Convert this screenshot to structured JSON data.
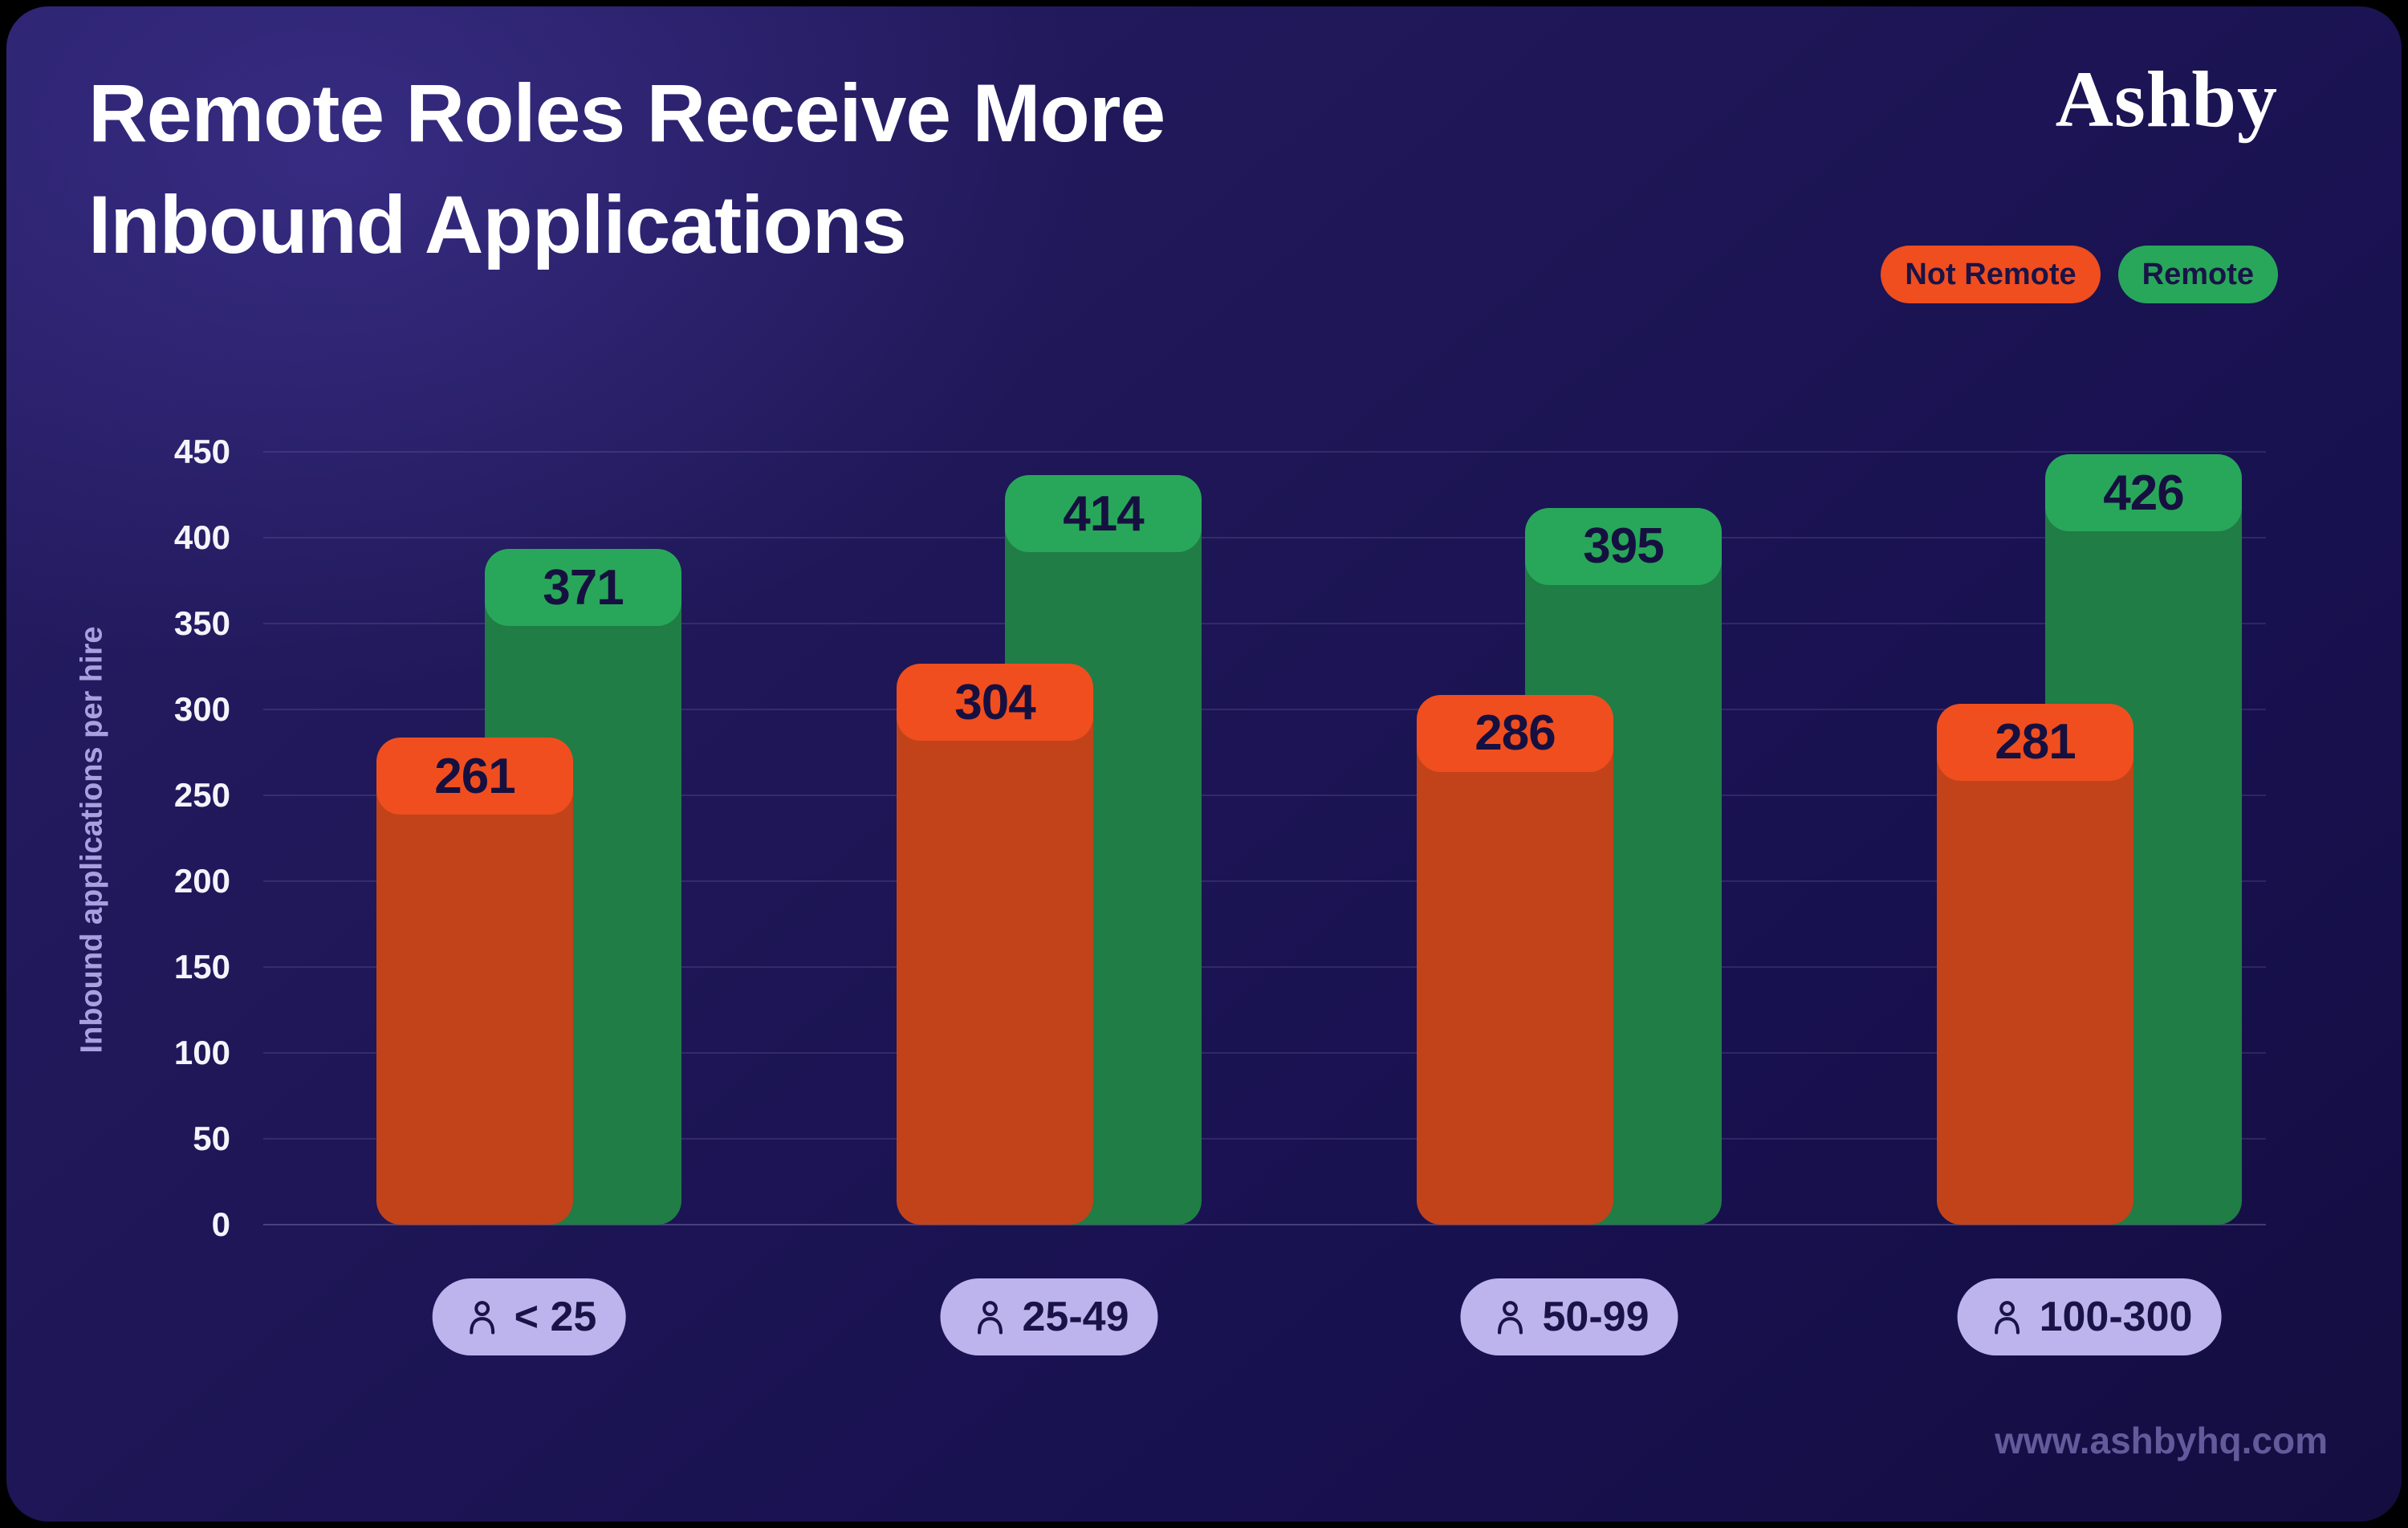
{
  "page": {
    "title_line1": "Remote Roles Receive More",
    "title_line2": "Inbound Applications",
    "logo": "Ashby",
    "footer_url": "www.ashbyhq.com"
  },
  "legend": {
    "items": [
      {
        "label": "Not Remote",
        "color": "#F04E1F"
      },
      {
        "label": "Remote",
        "color": "#28A75A"
      }
    ],
    "position": "top-right"
  },
  "colors": {
    "background_dark": "#181150",
    "background_light": "#271e67",
    "not_remote_cap": "#F04E1F",
    "not_remote_body": "#C2431A",
    "remote_cap": "#28A75A",
    "remote_body": "#1F7D45",
    "value_text": "#161040",
    "tick_text": "#F5F4FC",
    "axis_title_text": "#A9A0DF",
    "category_pill_bg": "#BDB4EE",
    "category_pill_text": "#1A1347",
    "footer_text": "#635A9B",
    "gridline": "rgba(200,195,240,0.13)"
  },
  "chart_data": {
    "type": "bar",
    "title": "Remote Roles Receive More Inbound Applications",
    "categories": [
      "< 25",
      "25-49",
      "50-99",
      "100-300"
    ],
    "series": [
      {
        "name": "Not Remote",
        "values": [
          261,
          304,
          286,
          281
        ],
        "cap_color": "#F04E1F",
        "body_color": "#C2431A"
      },
      {
        "name": "Remote",
        "values": [
          371,
          414,
          395,
          426
        ],
        "cap_color": "#28A75A",
        "body_color": "#1F7D45"
      }
    ],
    "xlabel": "",
    "ylabel": "Inbound applications per hire",
    "ylim": [
      0,
      450
    ],
    "y_ticks": [
      0,
      50,
      100,
      150,
      200,
      250,
      300,
      350,
      400,
      450
    ],
    "grid": "horizontal",
    "legend_position": "top-right"
  }
}
